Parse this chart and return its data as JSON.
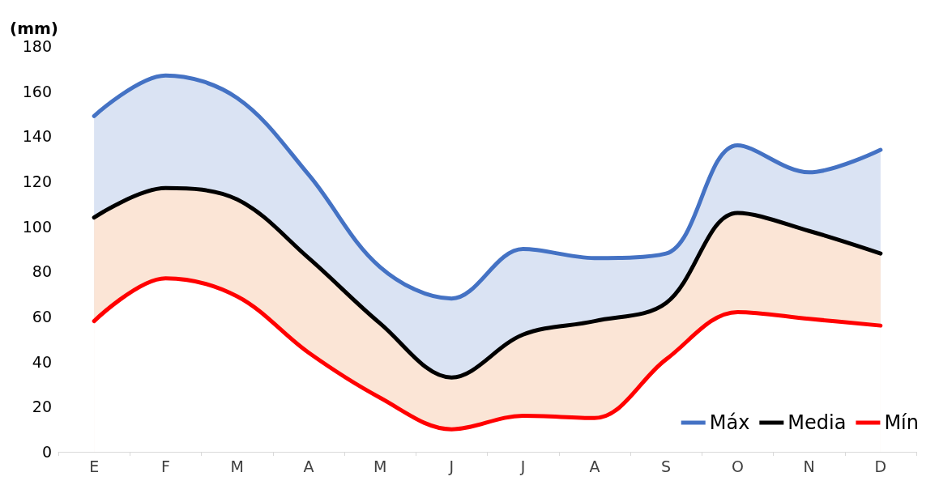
{
  "chart_data": {
    "type": "area",
    "ylabel": "(mm)",
    "categories": [
      "E",
      "F",
      "M",
      "A",
      "M",
      "J",
      "J",
      "A",
      "S",
      "O",
      "N",
      "D"
    ],
    "series": [
      {
        "name": "Máx",
        "color": "#4472c4",
        "values": [
          149,
          167,
          157,
          123,
          82,
          68,
          90,
          86,
          88,
          136,
          124,
          134
        ]
      },
      {
        "name": "Media",
        "color": "#000000",
        "values": [
          104,
          117,
          112,
          86,
          57,
          33,
          52,
          58,
          66,
          106,
          98,
          88
        ]
      },
      {
        "name": "Mín",
        "color": "#ff0000",
        "values": [
          58,
          77,
          69,
          44,
          24,
          10,
          16,
          15,
          41,
          62,
          59,
          56
        ]
      }
    ],
    "ylim": [
      0,
      180
    ],
    "yticks": [
      0,
      20,
      40,
      60,
      80,
      100,
      120,
      140,
      160,
      180
    ],
    "grid": false,
    "legend": "bottom right",
    "line_style": "solid",
    "marker": "none"
  }
}
